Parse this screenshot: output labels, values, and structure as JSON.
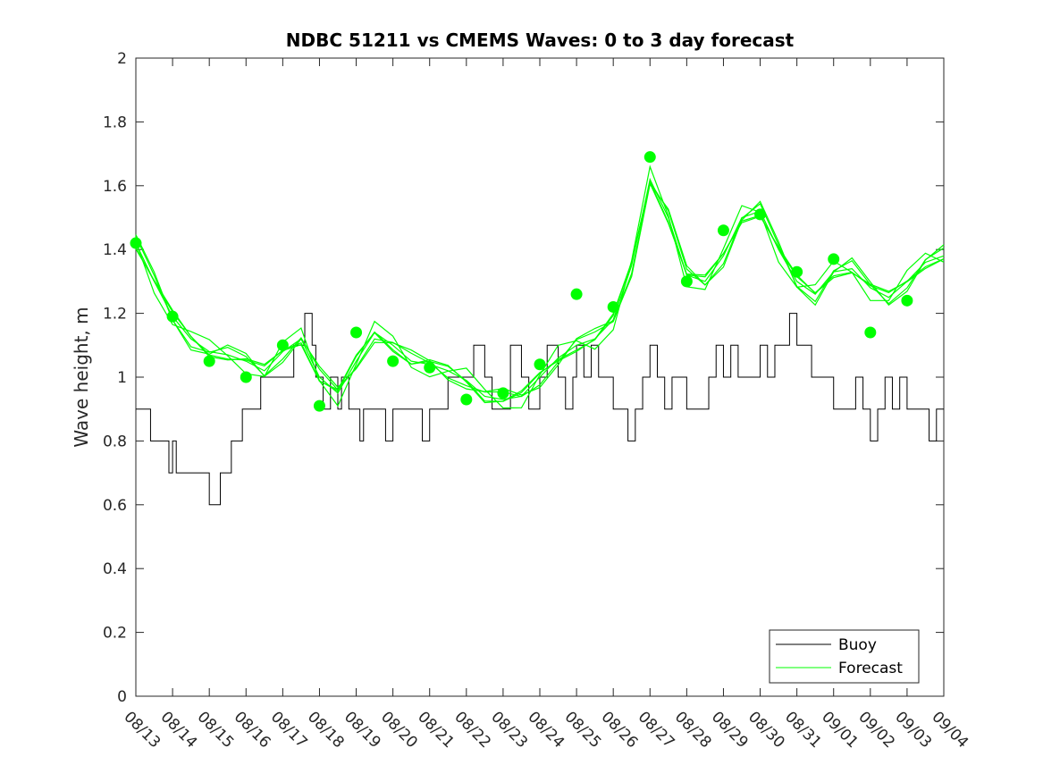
{
  "chart_data": {
    "type": "line",
    "title": "NDBC 51211 vs CMEMS Waves: 0 to 3 day forecast",
    "xlabel": "",
    "ylabel": "Wave height, m",
    "ylim": [
      0,
      2
    ],
    "xlim_days": [
      0,
      22
    ],
    "yticks": [
      "0",
      "0.2",
      "0.4",
      "0.6",
      "0.8",
      "1",
      "1.2",
      "1.4",
      "1.6",
      "1.8",
      "2"
    ],
    "xtick_labels": [
      "08/13",
      "08/14",
      "08/15",
      "08/16",
      "08/17",
      "08/18",
      "08/19",
      "08/20",
      "08/21",
      "08/22",
      "08/23",
      "08/24",
      "08/25",
      "08/26",
      "08/27",
      "08/28",
      "08/29",
      "08/30",
      "08/31",
      "09/01",
      "09/02",
      "09/03",
      "09/04"
    ],
    "legend": {
      "placement": "bottom-right",
      "entries": [
        "Buoy",
        "Forecast"
      ]
    },
    "colors": {
      "buoy": "#000000",
      "forecast": "#00ff00",
      "axis": "#262626"
    },
    "series": [
      {
        "name": "Buoy",
        "x": [
          0,
          0.3,
          0.4,
          0.6,
          0.8,
          0.9,
          1.0,
          1.1,
          1.2,
          1.4,
          1.5,
          1.6,
          2.0,
          2.3,
          2.5,
          2.6,
          2.8,
          2.9,
          3.0,
          3.2,
          3.4,
          3.6,
          3.8,
          4.1,
          4.3,
          4.6,
          4.8,
          4.9,
          5.0,
          5.1,
          5.3,
          5.5,
          5.6,
          5.8,
          6.0,
          6.1,
          6.2,
          6.4,
          6.6,
          6.8,
          7.0,
          7.2,
          7.4,
          7.6,
          7.8,
          8.0,
          8.2,
          8.5,
          8.7,
          9.0,
          9.2,
          9.5,
          9.7,
          10.0,
          10.2,
          10.5,
          10.7,
          11.0,
          11.2,
          11.4,
          11.5,
          11.7,
          11.9,
          12.0,
          12.2,
          12.4,
          12.6,
          12.8,
          13.0,
          13.2,
          13.4,
          13.6,
          13.8,
          14.0,
          14.2,
          14.4,
          14.6,
          14.8,
          15.0,
          15.2,
          15.4,
          15.6,
          15.8,
          16.0,
          16.2,
          16.4,
          16.6,
          16.8,
          17.0,
          17.2,
          17.4,
          17.6,
          17.8,
          18.0,
          18.2,
          18.4,
          18.6,
          18.8,
          19.0,
          19.2,
          19.4,
          19.6,
          19.8,
          20.0,
          20.2,
          20.4,
          20.6,
          20.8,
          21.0,
          21.2,
          21.4,
          21.6,
          21.8
        ],
        "values": [
          0.9,
          0.9,
          0.8,
          0.8,
          0.8,
          0.7,
          0.8,
          0.7,
          0.7,
          0.7,
          0.7,
          0.7,
          0.6,
          0.7,
          0.7,
          0.8,
          0.8,
          0.9,
          0.9,
          0.9,
          1.0,
          1.0,
          1.0,
          1.0,
          1.1,
          1.2,
          1.1,
          1.0,
          1.0,
          0.9,
          1.0,
          0.9,
          1.0,
          0.9,
          0.9,
          0.8,
          0.9,
          0.9,
          0.9,
          0.8,
          0.9,
          0.9,
          0.9,
          0.9,
          0.8,
          0.9,
          0.9,
          1.0,
          1.0,
          1.0,
          1.1,
          1.0,
          0.9,
          0.9,
          1.1,
          1.0,
          0.9,
          1.0,
          1.1,
          1.1,
          1.0,
          0.9,
          1.0,
          1.1,
          1.0,
          1.1,
          1.0,
          1.0,
          0.9,
          0.9,
          0.8,
          0.9,
          1.0,
          1.1,
          1.0,
          0.9,
          1.0,
          1.0,
          0.9,
          0.9,
          0.9,
          1.0,
          1.1,
          1.0,
          1.1,
          1.0,
          1.0,
          1.0,
          1.1,
          1.0,
          1.1,
          1.1,
          1.2,
          1.1,
          1.1,
          1.0,
          1.0,
          1.0,
          0.9,
          0.9,
          0.9,
          1.0,
          0.9,
          0.8,
          0.9,
          1.0,
          0.9,
          1.0,
          0.9,
          0.9,
          0.9,
          0.8,
          0.9
        ]
      },
      {
        "name": "Forecast",
        "x": [
          0,
          0.5,
          1,
          1.5,
          2,
          2.5,
          3,
          3.5,
          4,
          4.5,
          5,
          5.5,
          6,
          6.5,
          7,
          7.5,
          8,
          8.5,
          9,
          9.5,
          10,
          10.5,
          11,
          11.5,
          12,
          12.5,
          13,
          13.5,
          14,
          14.5,
          15,
          15.5,
          16,
          16.5,
          17,
          17.5,
          18,
          18.5,
          19,
          19.5,
          20,
          20.5,
          21,
          21.5,
          22
        ],
        "values": [
          1.42,
          1.3,
          1.19,
          1.12,
          1.08,
          1.07,
          1.05,
          1.02,
          1.08,
          1.12,
          1.0,
          0.95,
          1.05,
          1.14,
          1.1,
          1.05,
          1.04,
          1.02,
          0.99,
          0.94,
          0.93,
          0.94,
          1.0,
          1.06,
          1.1,
          1.12,
          1.18,
          1.35,
          1.62,
          1.5,
          1.32,
          1.3,
          1.38,
          1.5,
          1.52,
          1.4,
          1.3,
          1.26,
          1.33,
          1.34,
          1.28,
          1.25,
          1.3,
          1.36,
          1.38
        ]
      }
    ],
    "markers": {
      "x": [
        0,
        1,
        2,
        3,
        4,
        5,
        6,
        7,
        8,
        9,
        10,
        11,
        12,
        13,
        14,
        15,
        16,
        17,
        18,
        19,
        20,
        21
      ],
      "values": [
        1.42,
        1.19,
        1.05,
        1.0,
        1.1,
        0.91,
        1.14,
        1.05,
        1.03,
        0.93,
        0.95,
        1.04,
        1.26,
        1.22,
        1.69,
        1.3,
        1.46,
        1.51,
        1.33,
        1.37,
        1.14,
        1.24
      ]
    }
  }
}
